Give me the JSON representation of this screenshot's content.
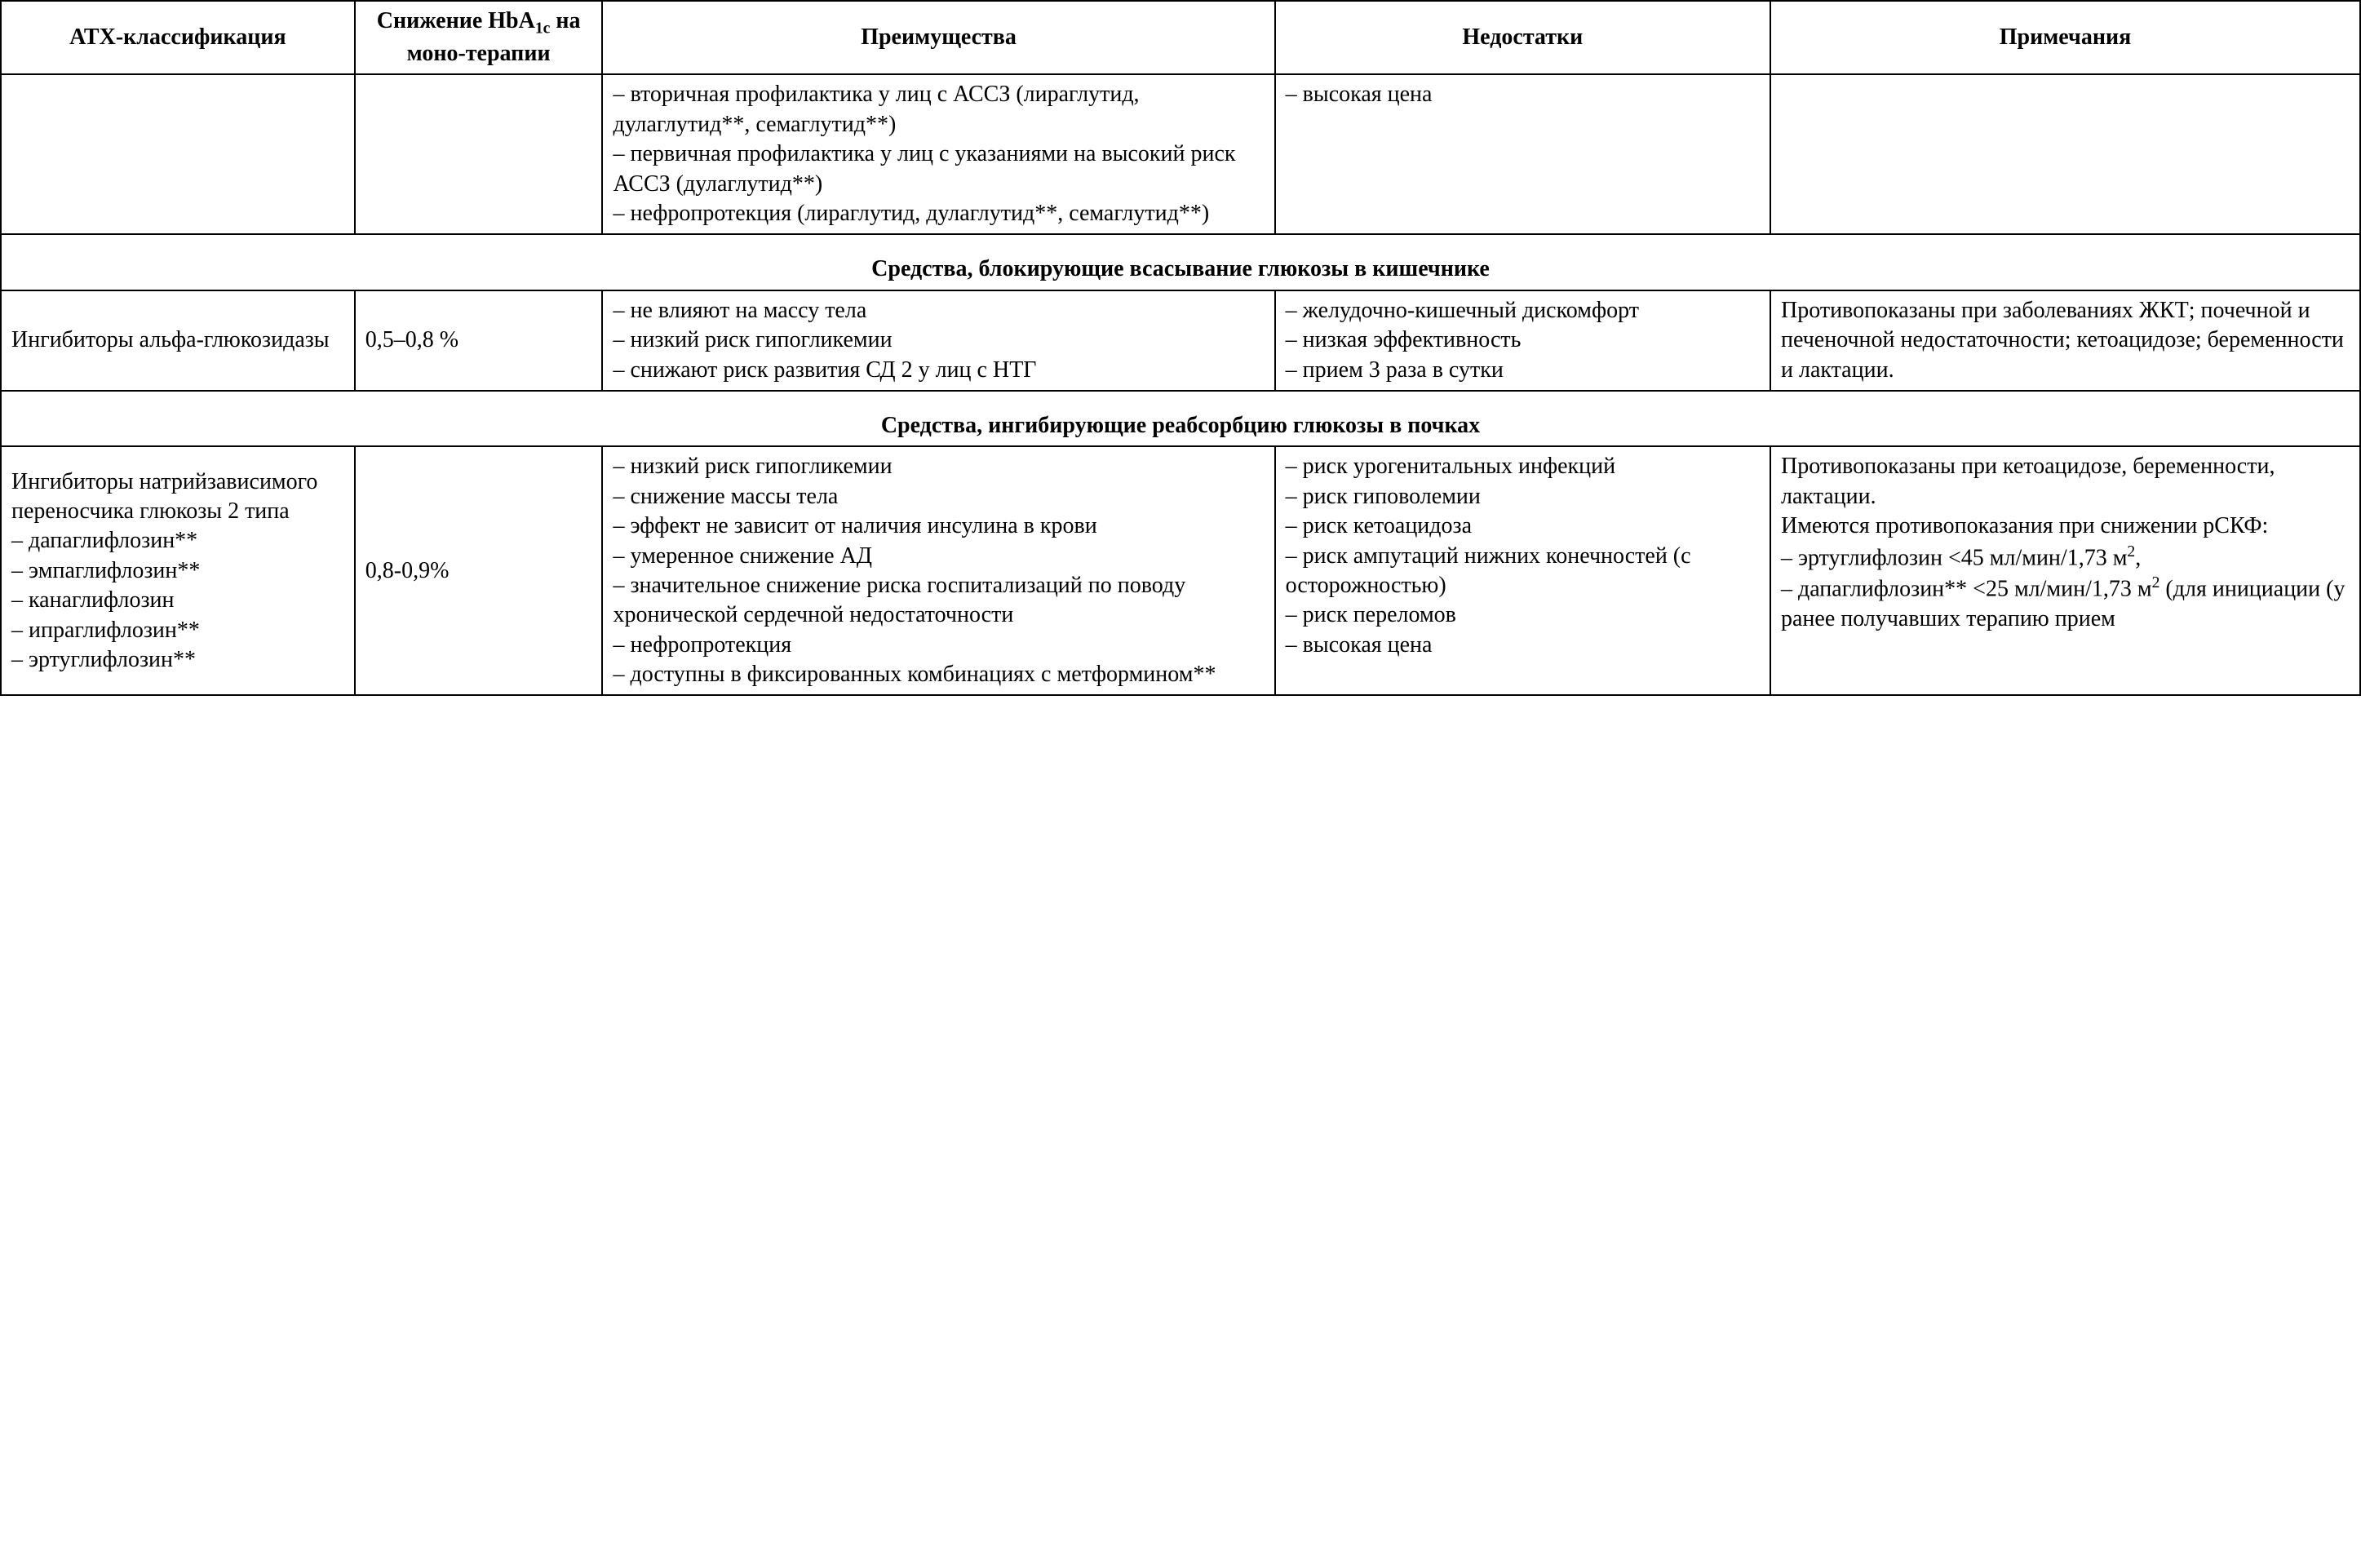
{
  "columns": {
    "atc": "АТХ-классификация",
    "hba1c_prefix": "Снижение HbA",
    "hba1c_sub": "1c",
    "hba1c_suffix": " на моно-терапии",
    "advantages": "Преимущества",
    "disadvantages": "Недостатки",
    "notes": "Примечания"
  },
  "row_continuation": {
    "atc": "",
    "hba1c": "",
    "advantages": "– вторичная профилактика у лиц с АССЗ (лираглутид, дулаглутид**, семаглутид**)\n– первичная профилактика у лиц с указаниями на высокий риск АССЗ (дулаглутид**)\n– нефропротекция (лираглутид, дулаглутид**, семаглутид**)",
    "disadvantages": "– высокая цена",
    "notes": ""
  },
  "section1": {
    "title": "Средства, блокирующие всасывание глюкозы в кишечнике",
    "row": {
      "atc": "Ингибиторы альфа-глюкозидазы",
      "hba1c": "0,5–0,8 %",
      "advantages": "– не влияют на массу тела\n– низкий риск гипогликемии\n– снижают риск развития СД 2 у лиц с НТГ",
      "disadvantages": "– желудочно-кишечный дискомфорт\n– низкая эффективность\n– прием 3 раза в сутки",
      "notes": "Противопоказаны при заболеваниях ЖКТ; почечной и печеночной недостаточности; кетоацидозе; беременности и лактации."
    }
  },
  "section2": {
    "title": "Средства, ингибирующие реабсорбцию глюкозы в почках",
    "row": {
      "atc": "Ингибиторы натрийзависимого переносчика глюкозы 2 типа\n– дапаглифлозин**\n– эмпаглифлозин**\n– канаглифлозин\n– ипраглифлозин**\n– эртуглифлозин**",
      "hba1c": "0,8-0,9%",
      "advantages": "– низкий риск гипогликемии\n– снижение массы тела\n– эффект не зависит от наличия инсулина в крови\n– умеренное снижение АД\n– значительное снижение риска госпитализаций по поводу хронической сердечной недостаточности\n– нефропротекция\n– доступны в фиксированных комбинациях с метформином**",
      "disadvantages": "–   риск   урогенитальных инфекций\n– риск гиповолемии\n– риск кетоацидоза\n– риск ампутаций нижних конечностей (с осторожностью)\n– риск переломов\n– высокая цена",
      "notes_p1": "Противопоказаны при кетоацидозе, беременности, лактации.\nИмеются противопоказания при снижении рСКФ:\n– эртуглифлозин <45 мл/мин/1,73 м",
      "notes_sup1": "2",
      "notes_p2": ",\n– дапаглифлозин** <25 мл/мин/1,73 м",
      "notes_sup2": "2",
      "notes_p3": " (для инициации (у ранее получавших терапию прием"
    }
  }
}
